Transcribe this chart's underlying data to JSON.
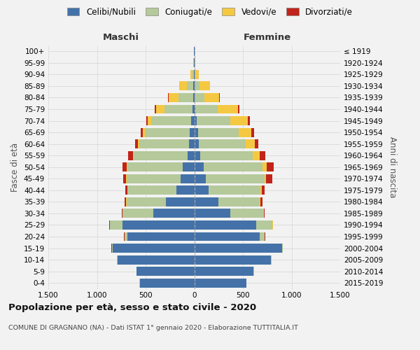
{
  "age_groups": [
    "0-4",
    "5-9",
    "10-14",
    "15-19",
    "20-24",
    "25-29",
    "30-34",
    "35-39",
    "40-44",
    "45-49",
    "50-54",
    "55-59",
    "60-64",
    "65-69",
    "70-74",
    "75-79",
    "80-84",
    "85-89",
    "90-94",
    "95-99",
    "100+"
  ],
  "birth_years": [
    "2015-2019",
    "2010-2014",
    "2005-2009",
    "2000-2004",
    "1995-1999",
    "1990-1994",
    "1985-1989",
    "1980-1984",
    "1975-1979",
    "1970-1974",
    "1965-1969",
    "1960-1964",
    "1955-1959",
    "1950-1954",
    "1945-1949",
    "1940-1944",
    "1935-1939",
    "1930-1934",
    "1925-1929",
    "1920-1924",
    "≤ 1919"
  ],
  "male": {
    "celibi": [
      560,
      590,
      790,
      840,
      690,
      740,
      420,
      290,
      185,
      140,
      120,
      70,
      55,
      45,
      30,
      15,
      8,
      8,
      4,
      2,
      2
    ],
    "coniugati": [
      2,
      2,
      4,
      8,
      28,
      125,
      315,
      405,
      500,
      555,
      570,
      555,
      510,
      460,
      410,
      290,
      155,
      65,
      12,
      3,
      1
    ],
    "vedovi": [
      0,
      0,
      0,
      0,
      0,
      1,
      2,
      3,
      5,
      5,
      6,
      8,
      12,
      22,
      40,
      85,
      100,
      80,
      20,
      5,
      1
    ],
    "divorziati": [
      0,
      0,
      0,
      1,
      2,
      5,
      10,
      15,
      20,
      30,
      40,
      50,
      28,
      20,
      15,
      15,
      4,
      4,
      0,
      0,
      0
    ]
  },
  "female": {
    "nubili": [
      535,
      610,
      790,
      900,
      670,
      640,
      370,
      245,
      150,
      120,
      95,
      60,
      48,
      38,
      22,
      12,
      7,
      7,
      3,
      2,
      1
    ],
    "coniugate": [
      2,
      2,
      4,
      10,
      55,
      165,
      340,
      430,
      530,
      600,
      610,
      540,
      480,
      420,
      350,
      230,
      95,
      45,
      8,
      2,
      1
    ],
    "vedove": [
      0,
      0,
      0,
      0,
      1,
      2,
      5,
      8,
      15,
      20,
      40,
      70,
      95,
      130,
      180,
      210,
      155,
      110,
      35,
      8,
      2
    ],
    "divorziate": [
      0,
      0,
      0,
      1,
      2,
      5,
      10,
      15,
      25,
      65,
      70,
      60,
      35,
      25,
      18,
      10,
      4,
      3,
      1,
      0,
      0
    ]
  },
  "colors": {
    "celibi_nubili": "#4472a8",
    "coniugati": "#b5c99a",
    "vedovi": "#f5c842",
    "divorziati": "#c0241a"
  },
  "xlim": 1500,
  "title": "Popolazione per età, sesso e stato civile - 2020",
  "subtitle": "COMUNE DI GRAGNANO (NA) - Dati ISTAT 1° gennaio 2020 - Elaborazione TUTTITALIA.IT",
  "ylabel_left": "Fasce di età",
  "ylabel_right": "Anni di nascita",
  "xlabel_left": "Maschi",
  "xlabel_right": "Femmine",
  "bg_color": "#f2f2f2",
  "grid_color": "#cccccc"
}
